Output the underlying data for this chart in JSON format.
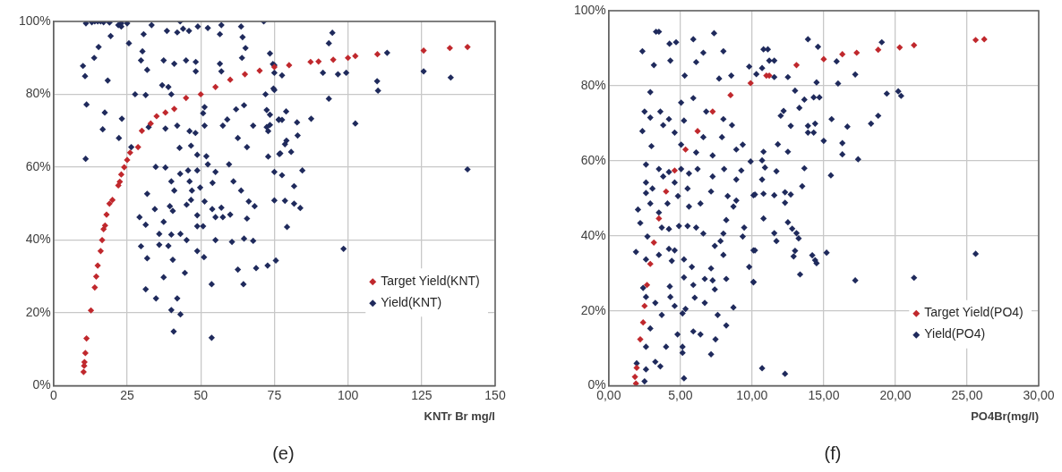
{
  "chart_data": [
    {
      "type": "scatter",
      "xlabel": "KNTr Br mg/l",
      "xlim": [
        0,
        150
      ],
      "xticks": [
        0,
        25,
        50,
        75,
        100,
        125,
        150
      ],
      "ylim": [
        0,
        1
      ],
      "yticks": [
        {
          "value": 0,
          "label": "0%"
        },
        {
          "value": 0.2,
          "label": "20%"
        },
        {
          "value": 0.4,
          "label": "40%"
        },
        {
          "value": 0.6,
          "label": "60%"
        },
        {
          "value": 0.8,
          "label": "80%"
        },
        {
          "value": 1,
          "label": "100%"
        }
      ],
      "grid": true,
      "legend": "bottom right",
      "marker": "diamond",
      "annotations": [
        "(e)"
      ],
      "series": [
        {
          "name": "Target Yield(KNT)",
          "color": "#c0282d",
          "x": [
            10.2,
            10.4,
            10.5,
            10.8,
            11.2,
            12.7,
            14,
            14.5,
            15,
            16,
            16.5,
            17,
            17.5,
            18,
            19,
            20,
            22,
            22.5,
            23,
            24,
            25,
            26,
            28.7,
            30,
            33,
            35,
            38,
            41,
            45,
            50,
            55,
            60,
            65,
            70,
            75,
            80,
            87.3,
            90,
            95,
            100,
            102.5,
            110,
            125.7,
            134.6,
            140.6
          ],
          "values": [
            0.038,
            0.055,
            0.065,
            0.09,
            0.13,
            0.207,
            0.27,
            0.3,
            0.33,
            0.37,
            0.4,
            0.43,
            0.44,
            0.47,
            0.5,
            0.51,
            0.55,
            0.56,
            0.58,
            0.6,
            0.62,
            0.64,
            0.655,
            0.7,
            0.72,
            0.74,
            0.75,
            0.76,
            0.79,
            0.8,
            0.82,
            0.84,
            0.855,
            0.865,
            0.875,
            0.88,
            0.889,
            0.89,
            0.895,
            0.9,
            0.905,
            0.91,
            0.92,
            0.927,
            0.93
          ]
        },
        {
          "name": "Yield(KNT)",
          "color": "#1f2a5c",
          "x": [
            11,
            13,
            14,
            15,
            16,
            17,
            19,
            22,
            23,
            25,
            43,
            71.4,
            23,
            25.6,
            30.6,
            33.3,
            38.5,
            42,
            44,
            46,
            49,
            52.4,
            57,
            56.5,
            63.7,
            19.4,
            15.3,
            13.8,
            10,
            10.7,
            18.4,
            11.2,
            17.4,
            23.2,
            16.7,
            22.2,
            10.9,
            30.2,
            31.8,
            29.7,
            27.7,
            31.3,
            37.4,
            41,
            45,
            48.3,
            48.3,
            36.9,
            39,
            40,
            56.5,
            57,
            64,
            65.2,
            64.2,
            32.3,
            38,
            42,
            46.2,
            48.2,
            51.3,
            50.8,
            51.3,
            57.5,
            59,
            62.6,
            65.7,
            67.8,
            72.4,
            73.5,
            72,
            64.7,
            62,
            26.4,
            42.8,
            46.7,
            48.8,
            51.9,
            52.4,
            55,
            34.7,
            38,
            43,
            45.7,
            48.8,
            59.6,
            61.1,
            63.7,
            40,
            41,
            46.2,
            47,
            49.8,
            54,
            31.8,
            34.4,
            39.5,
            40.5,
            45.2,
            46.7,
            51.3,
            53.9,
            57,
            60,
            29.2,
            31.3,
            37.4,
            48.8,
            55,
            57.5,
            65.7,
            66.3,
            68.3,
            48.8,
            50.8,
            35.9,
            40,
            43.1,
            45.2,
            55,
            60.6,
            64.7,
            67.8,
            29.7,
            31.8,
            35.9,
            39,
            40.5,
            48.8,
            51.1,
            44.6,
            37.4,
            31.3,
            34.8,
            42,
            40,
            43.1,
            40.8,
            53.7,
            53.7,
            62.6,
            64.5,
            68.8,
            72.7,
            75.5,
            74.5,
            75,
            74.7,
            76.5,
            77,
            75,
            75,
            73.5,
            75,
            77.6,
            75,
            72.4,
            79,
            76.5,
            77.6,
            82.7,
            73.5,
            72.9,
            82.9,
            79.1,
            78.6,
            80.7,
            72.9,
            76.7,
            87.5,
            77.6,
            84.5,
            81.7,
            78.6,
            81.7,
            83.8,
            79.3,
            94.7,
            93.5,
            91.5,
            96.6,
            99.4,
            93.5,
            102.5,
            109.9,
            110.2,
            113.3,
            125.7,
            134.9,
            140.6,
            98.5
          ],
          "values": [
            0.995,
            0.998,
            1,
            1,
            1,
            0.998,
            0.997,
            0.99,
            0.995,
            0.995,
            1,
            1,
            0.986,
            0.94,
            0.965,
            0.99,
            0.974,
            0.97,
            0.98,
            0.974,
            0.986,
            0.982,
            0.99,
            0.965,
            0.986,
            0.96,
            0.93,
            0.9,
            0.878,
            0.85,
            0.838,
            0.772,
            0.75,
            0.733,
            0.704,
            0.68,
            0.623,
            0.918,
            0.867,
            0.893,
            0.8,
            0.798,
            0.893,
            0.884,
            0.893,
            0.889,
            0.863,
            0.825,
            0.82,
            0.8,
            0.884,
            0.863,
            0.9,
            0.927,
            0.957,
            0.71,
            0.706,
            0.714,
            0.699,
            0.694,
            0.714,
            0.748,
            0.765,
            0.714,
            0.731,
            0.68,
            0.655,
            0.714,
            0.71,
            0.744,
            0.8,
            0.77,
            0.759,
            0.655,
            0.653,
            0.659,
            0.634,
            0.63,
            0.608,
            0.587,
            0.601,
            0.599,
            0.582,
            0.591,
            0.591,
            0.608,
            0.561,
            0.536,
            0.561,
            0.536,
            0.561,
            0.536,
            0.544,
            0.557,
            0.527,
            0.485,
            0.493,
            0.48,
            0.497,
            0.51,
            0.506,
            0.485,
            0.489,
            0.47,
            0.463,
            0.442,
            0.45,
            0.468,
            0.463,
            0.463,
            0.459,
            0.506,
            0.493,
            0.438,
            0.438,
            0.417,
            0.415,
            0.417,
            0.4,
            0.4,
            0.395,
            0.404,
            0.398,
            0.383,
            0.35,
            0.387,
            0.384,
            0.346,
            0.37,
            0.353,
            0.31,
            0.298,
            0.265,
            0.24,
            0.24,
            0.208,
            0.196,
            0.149,
            0.132,
            0.279,
            0.319,
            0.279,
            0.323,
            0.33,
            0.344,
            0.883,
            0.859,
            0.816,
            0.731,
            0.638,
            0.587,
            0.509,
            0.912,
            0.88,
            0.852,
            0.812,
            0.757,
            0.753,
            0.73,
            0.73,
            0.723,
            0.716,
            0.699,
            0.687,
            0.673,
            0.663,
            0.642,
            0.629,
            0.636,
            0.733,
            0.578,
            0.591,
            0.548,
            0.508,
            0.5,
            0.488,
            0.436,
            0.969,
            0.94,
            0.859,
            0.855,
            0.859,
            0.788,
            0.72,
            0.836,
            0.81,
            0.914,
            0.863,
            0.846,
            0.594,
            0.376
          ]
        }
      ]
    },
    {
      "type": "scatter",
      "xlabel": "PO4Br(mg/l)",
      "xlim": [
        0,
        30
      ],
      "xticks": [
        {
          "value": 0,
          "label": "0,00"
        },
        {
          "value": 5,
          "label": "5,00"
        },
        {
          "value": 10,
          "label": "10,00"
        },
        {
          "value": 15,
          "label": "15,00"
        },
        {
          "value": 20,
          "label": "20,00"
        },
        {
          "value": 25,
          "label": "25,00"
        },
        {
          "value": 30,
          "label": "30,00"
        }
      ],
      "ylim": [
        0,
        1
      ],
      "yticks": [
        {
          "value": 0,
          "label": "0%"
        },
        {
          "value": 0.2,
          "label": "20%"
        },
        {
          "value": 0.4,
          "label": "40%"
        },
        {
          "value": 0.6,
          "label": "60%"
        },
        {
          "value": 0.8,
          "label": "80%"
        },
        {
          "value": 1,
          "label": "100%"
        }
      ],
      "grid": true,
      "legend": "bottom right",
      "marker": "diamond",
      "annotations": [
        "(f)"
      ],
      "series": [
        {
          "name": "Target Yield(PO4)",
          "color": "#c0282d",
          "x": [
            1.83,
            1.9,
            1.95,
            2.2,
            2.4,
            2.5,
            2.67,
            2.9,
            3.15,
            3.5,
            4,
            4.6,
            5.36,
            6.2,
            7.25,
            8.5,
            9.9,
            11,
            11.2,
            13.1,
            15,
            16.3,
            17.3,
            18.8,
            20.3,
            21.3,
            25.6,
            26.2
          ],
          "values": [
            0.024,
            0.006,
            0.048,
            0.124,
            0.169,
            0.213,
            0.269,
            0.325,
            0.382,
            0.446,
            0.518,
            0.574,
            0.63,
            0.679,
            0.731,
            0.775,
            0.807,
            0.827,
            0.827,
            0.855,
            0.871,
            0.884,
            0.888,
            0.896,
            0.902,
            0.908,
            0.922,
            0.924
          ]
        },
        {
          "name": "Yield(PO4)",
          "color": "#1f2a5c",
          "x": [
            3.3,
            3.5,
            2.35,
            3.15,
            4.24,
            4.7,
            4.3,
            5.3,
            5.9,
            6.1,
            6.6,
            7.35,
            8,
            7.7,
            8.55,
            9.8,
            2.9,
            2.5,
            2.9,
            2.35,
            3.6,
            3.8,
            4.2,
            5.05,
            5.9,
            5.25,
            4.6,
            5.05,
            6.6,
            6.8,
            8,
            8.6,
            7.9,
            7.25,
            6.1,
            9.35,
            8.9,
            9.9,
            2.98,
            2.6,
            3.5,
            3.8,
            4.2,
            2.6,
            2.6,
            3.05,
            4.6,
            5.05,
            5.6,
            5.5,
            6.2,
            7.25,
            8.05,
            8.9,
            9.25,
            2.04,
            2.9,
            3.5,
            4.1,
            4.83,
            5.6,
            6.4,
            7.14,
            8.3,
            8.9,
            8.7,
            8.2,
            9.45,
            8,
            9.35,
            2.2,
            2.7,
            3.7,
            4.2,
            4.9,
            5.5,
            6.1,
            6.6,
            7.4,
            7.8,
            1.9,
            2.6,
            3.5,
            4.2,
            4.6,
            5.25,
            5.8,
            4.4,
            7.14,
            8,
            9.8,
            8.2,
            6.7,
            7.25,
            5.9,
            5.25,
            4.26,
            2.4,
            2.6,
            3.25,
            4.3,
            4.6,
            5.36,
            6,
            6.7,
            7.4,
            8.7,
            3.7,
            5.15,
            5.9,
            6.4,
            7.6,
            8.2,
            7.45,
            4.8,
            2.9,
            2.6,
            4,
            5.15,
            5.15,
            7.14,
            1.95,
            3.25,
            3.6,
            2.6,
            5.25,
            2.5,
            13.9,
            14.6,
            10.8,
            11.1,
            11.2,
            11.55,
            19.05,
            10.7,
            10.3,
            11.55,
            12.5,
            15.9,
            17.2,
            14.5,
            16,
            13,
            13.65,
            14.3,
            14.7,
            19.4,
            20.2,
            20.4,
            13.3,
            12.2,
            12,
            15.55,
            18.8,
            18.3,
            12.7,
            13.9,
            14.4,
            16.65,
            13.9,
            14.3,
            15,
            16.3,
            11.8,
            10.8,
            12.5,
            16.3,
            17.4,
            10.7,
            10.9,
            11.7,
            13.65,
            15.5,
            10.7,
            13.5,
            10.1,
            10.8,
            11.55,
            12.3,
            12.7,
            12.3,
            10.8,
            11.55,
            11.7,
            12.5,
            12.8,
            13.1,
            13.25,
            10.1,
            13,
            12.9,
            14.2,
            14.4,
            14.5,
            15.2,
            10.1,
            13.35,
            17.2,
            21.3,
            25.6,
            10.7,
            12.3,
            10.2,
            10.1,
            10.2
          ],
          "values": [
            0.944,
            0.944,
            0.892,
            0.855,
            0.912,
            0.916,
            0.867,
            0.827,
            0.924,
            0.863,
            0.888,
            0.94,
            0.892,
            0.819,
            0.827,
            0.851,
            0.783,
            0.731,
            0.715,
            0.679,
            0.731,
            0.695,
            0.711,
            0.755,
            0.767,
            0.707,
            0.675,
            0.643,
            0.663,
            0.731,
            0.711,
            0.695,
            0.663,
            0.614,
            0.622,
            0.643,
            0.63,
            0.598,
            0.639,
            0.59,
            0.578,
            0.558,
            0.57,
            0.542,
            0.514,
            0.526,
            0.542,
            0.578,
            0.566,
            0.526,
            0.578,
            0.558,
            0.578,
            0.55,
            0.574,
            0.47,
            0.486,
            0.462,
            0.486,
            0.506,
            0.478,
            0.486,
            0.518,
            0.506,
            0.494,
            0.478,
            0.442,
            0.422,
            0.406,
            0.398,
            0.434,
            0.398,
            0.422,
            0.418,
            0.426,
            0.426,
            0.422,
            0.406,
            0.373,
            0.386,
            0.357,
            0.337,
            0.349,
            0.365,
            0.361,
            0.337,
            0.317,
            0.333,
            0.313,
            0.349,
            0.317,
            0.285,
            0.285,
            0.281,
            0.269,
            0.289,
            0.265,
            0.261,
            0.237,
            0.221,
            0.237,
            0.213,
            0.205,
            0.235,
            0.221,
            0.257,
            0.209,
            0.189,
            0.193,
            0.145,
            0.137,
            0.189,
            0.161,
            0.124,
            0.137,
            0.153,
            0.104,
            0.104,
            0.104,
            0.088,
            0.084,
            0.06,
            0.064,
            0.052,
            0.044,
            0.02,
            0.012,
            0.924,
            0.904,
            0.897,
            0.897,
            0.867,
            0.867,
            0.916,
            0.847,
            0.831,
            0.823,
            0.823,
            0.865,
            0.83,
            0.809,
            0.806,
            0.787,
            0.763,
            0.769,
            0.769,
            0.779,
            0.785,
            0.773,
            0.741,
            0.733,
            0.72,
            0.711,
            0.72,
            0.699,
            0.693,
            0.693,
            0.699,
            0.691,
            0.675,
            0.675,
            0.653,
            0.647,
            0.644,
            0.624,
            0.624,
            0.617,
            0.604,
            0.601,
            0.582,
            0.572,
            0.58,
            0.561,
            0.55,
            0.532,
            0.508,
            0.512,
            0.508,
            0.516,
            0.51,
            0.488,
            0.446,
            0.407,
            0.386,
            0.436,
            0.419,
            0.407,
            0.393,
            0.361,
            0.36,
            0.345,
            0.348,
            0.335,
            0.327,
            0.355,
            0.276,
            0.297,
            0.281,
            0.288,
            0.352,
            0.047,
            0.032,
            0.361,
            0.277,
            0.51
          ]
        }
      ]
    }
  ]
}
